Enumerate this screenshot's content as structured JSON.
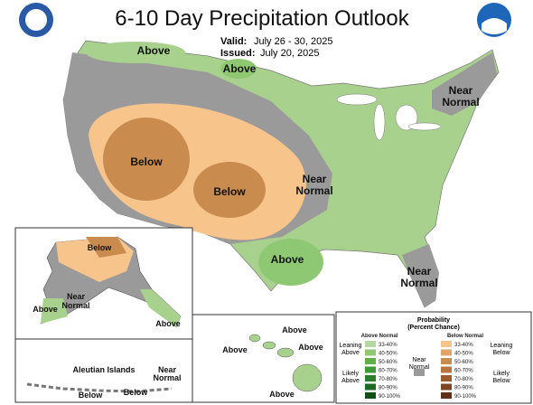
{
  "header": {
    "title": "6-10 Day Precipitation Outlook",
    "valid_label": "Valid:",
    "valid_dates": "July 26 - 30, 2025",
    "issued_label": "Issued:",
    "issued_date": "July 20, 2025"
  },
  "regions": [
    {
      "lines": [
        "Above"
      ]
    },
    {
      "lines": [
        "Above"
      ]
    },
    {
      "lines": [
        "Near",
        "Normal"
      ]
    },
    {
      "lines": [
        "Below"
      ]
    },
    {
      "lines": [
        "Below"
      ]
    },
    {
      "lines": [
        "Near",
        "Normal"
      ]
    },
    {
      "lines": [
        "Above"
      ]
    },
    {
      "lines": [
        "Near",
        "Normal"
      ]
    }
  ],
  "alaska": [
    {
      "lines": [
        "Below"
      ]
    },
    {
      "lines": [
        "Near",
        "Normal"
      ]
    },
    {
      "lines": [
        "Above"
      ]
    },
    {
      "lines": [
        "Above"
      ]
    }
  ],
  "hawaii": [
    {
      "lines": [
        "Above"
      ]
    },
    {
      "lines": [
        "Above"
      ]
    },
    {
      "lines": [
        "Above"
      ]
    },
    {
      "lines": [
        "Above"
      ]
    }
  ],
  "aleutian": {
    "title": "Aleutian Islands",
    "labels": [
      {
        "lines": [
          "Near",
          "Normal"
        ]
      },
      {
        "lines": [
          "Below"
        ]
      },
      {
        "lines": [
          "Below"
        ]
      }
    ]
  },
  "legend": {
    "title": "Probability",
    "subtitle": "(Percent Chance)",
    "above_head": "Above Normal",
    "below_head": "Below Normal",
    "bins": [
      "33-40%",
      "40-50%",
      "50-60%",
      "60-70%",
      "70-80%",
      "80-90%",
      "90-100%"
    ],
    "above_colors": [
      "#b5d8a0",
      "#8fc873",
      "#5fb04a",
      "#3e9a35",
      "#2a7f28",
      "#1b6a1e",
      "#0f5014"
    ],
    "below_colors": [
      "#f7c48c",
      "#e0a468",
      "#c98b4e",
      "#b8743c",
      "#9a5c2c",
      "#7d4520",
      "#5e3015"
    ],
    "near_color": "#9a9a9a",
    "leaning_above": [
      "Leaning",
      "Above"
    ],
    "likely_above": [
      "Likely",
      "Above"
    ],
    "near": [
      "Near",
      "Normal"
    ],
    "leaning_below": [
      "Leaning",
      "Below"
    ],
    "likely_below": [
      "Likely",
      "Below"
    ]
  }
}
